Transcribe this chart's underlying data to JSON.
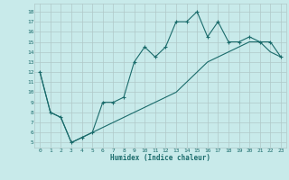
{
  "xlabel": "Humidex (Indice chaleur)",
  "bg_color": "#c8eaea",
  "grid_color": "#b0c8c8",
  "line_color": "#1a6b6b",
  "line1_x": [
    0,
    1,
    2,
    3,
    4,
    5,
    6,
    7,
    8,
    9,
    10,
    11,
    12,
    13,
    14,
    15,
    16,
    17,
    18,
    19,
    20,
    21,
    22,
    23
  ],
  "line1_y": [
    12,
    8,
    7.5,
    5,
    5.5,
    6,
    9,
    9,
    9.5,
    13,
    14.5,
    13.5,
    14.5,
    17,
    17,
    18,
    15.5,
    17,
    15,
    15,
    15.5,
    15,
    15,
    13.5
  ],
  "line2_x": [
    0,
    1,
    2,
    3,
    4,
    5,
    6,
    7,
    8,
    9,
    10,
    11,
    12,
    13,
    14,
    15,
    16,
    17,
    18,
    19,
    20,
    21,
    22,
    23
  ],
  "line2_y": [
    12,
    8,
    7.5,
    5,
    5.5,
    6,
    6.5,
    7,
    7.5,
    8,
    8.5,
    9,
    9.5,
    10,
    11,
    12,
    13,
    13.5,
    14,
    14.5,
    15,
    15,
    14,
    13.5
  ],
  "xlim": [
    -0.5,
    23.5
  ],
  "ylim": [
    4.5,
    18.8
  ],
  "yticks": [
    5,
    6,
    7,
    8,
    9,
    10,
    11,
    12,
    13,
    14,
    15,
    16,
    17,
    18
  ],
  "xticks": [
    0,
    1,
    2,
    3,
    4,
    5,
    6,
    7,
    8,
    9,
    10,
    11,
    12,
    13,
    14,
    15,
    16,
    17,
    18,
    19,
    20,
    21,
    22,
    23
  ]
}
